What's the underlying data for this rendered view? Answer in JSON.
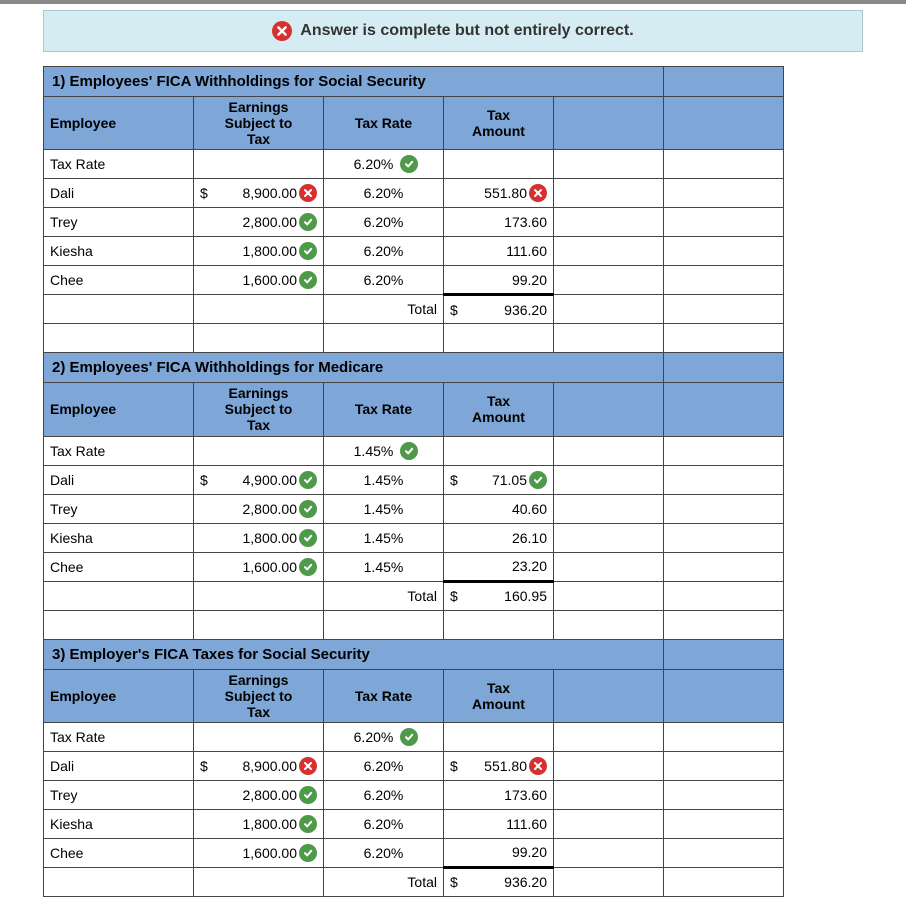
{
  "banner": {
    "message": "Answer is complete but not entirely correct.",
    "icon": "x"
  },
  "colors": {
    "header_bg": "#7ea6d7",
    "banner_bg": "#d6ecf3",
    "correct": "#4f9a4a",
    "incorrect": "#d53131",
    "border": "#444"
  },
  "columns": [
    "Employee",
    "Earnings Subject to Tax",
    "Tax Rate",
    "Tax Amount"
  ],
  "sections": [
    {
      "title": "1) Employees' FICA Withholdings for Social Security",
      "rate_row": {
        "label": "Tax Rate",
        "rate": "6.20%",
        "rate_status": "correct"
      },
      "rows": [
        {
          "employee": "Dali",
          "earn_cur": "$",
          "earn": "8,900.00",
          "earn_status": "incorrect",
          "rate": "6.20%",
          "tax_cur": "",
          "tax": "551.80",
          "tax_status": "incorrect"
        },
        {
          "employee": "Trey",
          "earn_cur": "",
          "earn": "2,800.00",
          "earn_status": "correct",
          "rate": "6.20%",
          "tax_cur": "",
          "tax": "173.60",
          "tax_status": ""
        },
        {
          "employee": "Kiesha",
          "earn_cur": "",
          "earn": "1,800.00",
          "earn_status": "correct",
          "rate": "6.20%",
          "tax_cur": "",
          "tax": "111.60",
          "tax_status": ""
        },
        {
          "employee": "Chee",
          "earn_cur": "",
          "earn": "1,600.00",
          "earn_status": "correct",
          "rate": "6.20%",
          "tax_cur": "",
          "tax": "99.20",
          "tax_status": ""
        }
      ],
      "total": {
        "label": "Total",
        "cur": "$",
        "value": "936.20"
      }
    },
    {
      "title": "2) Employees' FICA Withholdings for Medicare",
      "rate_row": {
        "label": "Tax Rate",
        "rate": "1.45%",
        "rate_status": "correct"
      },
      "rows": [
        {
          "employee": "Dali",
          "earn_cur": "$",
          "earn": "4,900.00",
          "earn_status": "correct",
          "rate": "1.45%",
          "tax_cur": "$",
          "tax": "71.05",
          "tax_status": "correct"
        },
        {
          "employee": "Trey",
          "earn_cur": "",
          "earn": "2,800.00",
          "earn_status": "correct",
          "rate": "1.45%",
          "tax_cur": "",
          "tax": "40.60",
          "tax_status": ""
        },
        {
          "employee": "Kiesha",
          "earn_cur": "",
          "earn": "1,800.00",
          "earn_status": "correct",
          "rate": "1.45%",
          "tax_cur": "",
          "tax": "26.10",
          "tax_status": ""
        },
        {
          "employee": "Chee",
          "earn_cur": "",
          "earn": "1,600.00",
          "earn_status": "correct",
          "rate": "1.45%",
          "tax_cur": "",
          "tax": "23.20",
          "tax_status": ""
        }
      ],
      "total": {
        "label": "Total",
        "cur": "$",
        "value": "160.95"
      }
    },
    {
      "title": "3) Employer's FICA Taxes for Social Security",
      "rate_row": {
        "label": "Tax Rate",
        "rate": "6.20%",
        "rate_status": "correct"
      },
      "rows": [
        {
          "employee": "Dali",
          "earn_cur": "$",
          "earn": "8,900.00",
          "earn_status": "incorrect",
          "rate": "6.20%",
          "tax_cur": "$",
          "tax": "551.80",
          "tax_status": "incorrect"
        },
        {
          "employee": "Trey",
          "earn_cur": "",
          "earn": "2,800.00",
          "earn_status": "correct",
          "rate": "6.20%",
          "tax_cur": "",
          "tax": "173.60",
          "tax_status": ""
        },
        {
          "employee": "Kiesha",
          "earn_cur": "",
          "earn": "1,800.00",
          "earn_status": "correct",
          "rate": "6.20%",
          "tax_cur": "",
          "tax": "111.60",
          "tax_status": ""
        },
        {
          "employee": "Chee",
          "earn_cur": "",
          "earn": "1,600.00",
          "earn_status": "correct",
          "rate": "6.20%",
          "tax_cur": "",
          "tax": "99.20",
          "tax_status": ""
        }
      ],
      "total": {
        "label": "Total",
        "cur": "$",
        "value": "936.20"
      }
    }
  ]
}
